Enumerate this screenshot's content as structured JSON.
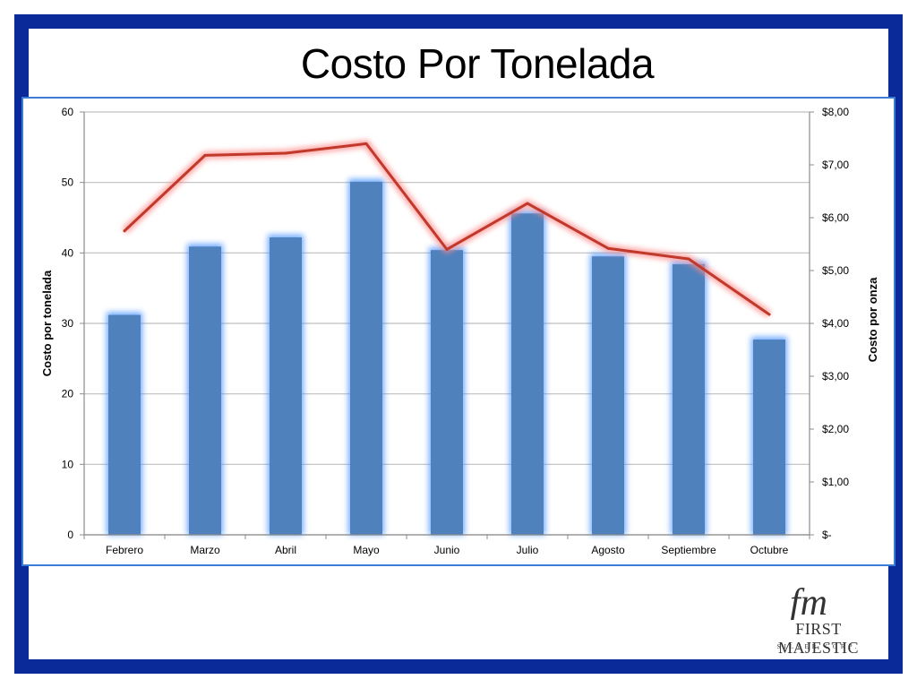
{
  "slide": {
    "title": "Costo Por Tonelada"
  },
  "logo": {
    "name": "First Majestic",
    "sub": "Silver Corp.",
    "mark": "fm",
    "brand_color": "#333333"
  },
  "colors": {
    "frame": "#0a2a9a",
    "bar": "#4f81bd",
    "bar_glow": "#3d8cff",
    "line": "#c0392b",
    "line_glow": "#ff8a8a",
    "grid": "#bfbfbf"
  },
  "chart_data": {
    "type": "bar",
    "title": "Costo Por Tonelada",
    "categories": [
      "Febrero",
      "Marzo",
      "Abril",
      "Mayo",
      "Junio",
      "Julio",
      "Agosto",
      "Septiembre",
      "Octubre"
    ],
    "ylabel": "Costo por tonelada",
    "y2label": "Costo por onza",
    "ylim": [
      0,
      60
    ],
    "y2lim": [
      0,
      8
    ],
    "y_ticks": [
      "0",
      "10",
      "20",
      "30",
      "40",
      "50",
      "60"
    ],
    "y2_ticks": [
      "$-",
      "$1,00",
      "$2,00",
      "$3,00",
      "$4,00",
      "$5,00",
      "$6,00",
      "$7,00",
      "$8,00"
    ],
    "grid": true,
    "legend": "none",
    "series": [
      {
        "type": "bar",
        "axis": "left",
        "values": [
          31.2,
          40.9,
          42.2,
          50.1,
          40.4,
          45.6,
          39.5,
          38.4,
          27.7
        ]
      },
      {
        "type": "line",
        "axis": "right",
        "values": [
          5.75,
          7.18,
          7.22,
          7.4,
          5.4,
          6.27,
          5.42,
          5.22,
          4.17
        ]
      }
    ]
  }
}
